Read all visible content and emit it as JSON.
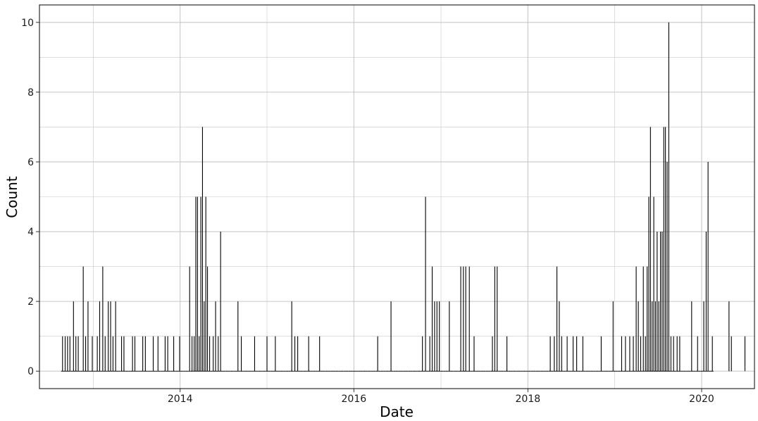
{
  "chart_data": {
    "type": "bar",
    "xlabel": "Date",
    "ylabel": "Count",
    "xlim": [
      "2012-05-20",
      "2020-08-10"
    ],
    "ylim": [
      -0.5,
      10.5
    ],
    "x_ticks": [
      "2014",
      "2016",
      "2018",
      "2020"
    ],
    "y_ticks": [
      0,
      2,
      4,
      6,
      8,
      10
    ],
    "grid": true,
    "series_color": "#000000",
    "grid_color": "#c8c8c8",
    "baseline": {
      "start": "2012-08-20",
      "end": "2020-02-20"
    },
    "points": [
      [
        "2012-08-25",
        1
      ],
      [
        "2012-09-05",
        1
      ],
      [
        "2012-09-15",
        1
      ],
      [
        "2012-09-25",
        1
      ],
      [
        "2012-10-10",
        2
      ],
      [
        "2012-10-20",
        1
      ],
      [
        "2012-10-30",
        1
      ],
      [
        "2012-11-20",
        3
      ],
      [
        "2012-11-30",
        1
      ],
      [
        "2012-12-10",
        2
      ],
      [
        "2012-12-28",
        1
      ],
      [
        "2013-01-18",
        1
      ],
      [
        "2013-01-28",
        2
      ],
      [
        "2013-02-10",
        3
      ],
      [
        "2013-02-20",
        1
      ],
      [
        "2013-03-05",
        2
      ],
      [
        "2013-03-15",
        2
      ],
      [
        "2013-03-25",
        1
      ],
      [
        "2013-04-05",
        2
      ],
      [
        "2013-04-30",
        1
      ],
      [
        "2013-05-10",
        1
      ],
      [
        "2013-06-15",
        1
      ],
      [
        "2013-06-25",
        1
      ],
      [
        "2013-07-28",
        1
      ],
      [
        "2013-08-08",
        1
      ],
      [
        "2013-09-10",
        1
      ],
      [
        "2013-09-30",
        1
      ],
      [
        "2013-10-30",
        1
      ],
      [
        "2013-11-10",
        1
      ],
      [
        "2013-12-05",
        1
      ],
      [
        "2013-12-30",
        1
      ],
      [
        "2014-02-10",
        3
      ],
      [
        "2014-02-20",
        1
      ],
      [
        "2014-03-01",
        1
      ],
      [
        "2014-03-08",
        5
      ],
      [
        "2014-03-15",
        5
      ],
      [
        "2014-03-22",
        1
      ],
      [
        "2014-03-29",
        5
      ],
      [
        "2014-04-05",
        7
      ],
      [
        "2014-04-12",
        2
      ],
      [
        "2014-04-19",
        5
      ],
      [
        "2014-04-26",
        3
      ],
      [
        "2014-05-05",
        1
      ],
      [
        "2014-05-20",
        1
      ],
      [
        "2014-05-30",
        2
      ],
      [
        "2014-06-10",
        1
      ],
      [
        "2014-06-20",
        4
      ],
      [
        "2014-09-01",
        2
      ],
      [
        "2014-09-15",
        1
      ],
      [
        "2014-11-10",
        1
      ],
      [
        "2015-01-01",
        1
      ],
      [
        "2015-02-05",
        1
      ],
      [
        "2015-04-15",
        2
      ],
      [
        "2015-04-28",
        1
      ],
      [
        "2015-05-10",
        1
      ],
      [
        "2015-06-25",
        1
      ],
      [
        "2015-08-10",
        1
      ],
      [
        "2016-04-10",
        1
      ],
      [
        "2016-06-05",
        2
      ],
      [
        "2016-10-15",
        1
      ],
      [
        "2016-10-28",
        5
      ],
      [
        "2016-11-15",
        1
      ],
      [
        "2016-11-25",
        3
      ],
      [
        "2016-12-05",
        2
      ],
      [
        "2016-12-15",
        2
      ],
      [
        "2016-12-25",
        2
      ],
      [
        "2017-02-05",
        2
      ],
      [
        "2017-03-25",
        3
      ],
      [
        "2017-04-05",
        3
      ],
      [
        "2017-04-15",
        3
      ],
      [
        "2017-04-30",
        3
      ],
      [
        "2017-05-20",
        1
      ],
      [
        "2017-08-05",
        1
      ],
      [
        "2017-08-15",
        3
      ],
      [
        "2017-08-25",
        3
      ],
      [
        "2017-10-05",
        1
      ],
      [
        "2018-04-05",
        1
      ],
      [
        "2018-04-22",
        1
      ],
      [
        "2018-05-03",
        3
      ],
      [
        "2018-05-13",
        2
      ],
      [
        "2018-05-23",
        1
      ],
      [
        "2018-06-15",
        1
      ],
      [
        "2018-07-10",
        1
      ],
      [
        "2018-07-25",
        1
      ],
      [
        "2018-08-20",
        1
      ],
      [
        "2018-11-05",
        1
      ],
      [
        "2018-12-25",
        2
      ],
      [
        "2019-01-30",
        1
      ],
      [
        "2019-02-15",
        1
      ],
      [
        "2019-03-05",
        1
      ],
      [
        "2019-03-20",
        1
      ],
      [
        "2019-04-01",
        3
      ],
      [
        "2019-04-10",
        2
      ],
      [
        "2019-04-20",
        1
      ],
      [
        "2019-05-01",
        3
      ],
      [
        "2019-05-10",
        1
      ],
      [
        "2019-05-17",
        3
      ],
      [
        "2019-05-24",
        5
      ],
      [
        "2019-05-31",
        7
      ],
      [
        "2019-06-07",
        2
      ],
      [
        "2019-06-14",
        5
      ],
      [
        "2019-06-21",
        2
      ],
      [
        "2019-06-28",
        4
      ],
      [
        "2019-07-05",
        2
      ],
      [
        "2019-07-12",
        4
      ],
      [
        "2019-07-19",
        4
      ],
      [
        "2019-07-26",
        7
      ],
      [
        "2019-08-02",
        7
      ],
      [
        "2019-08-09",
        6
      ],
      [
        "2019-08-16",
        10
      ],
      [
        "2019-08-25",
        1
      ],
      [
        "2019-09-05",
        1
      ],
      [
        "2019-09-20",
        1
      ],
      [
        "2019-10-01",
        1
      ],
      [
        "2019-11-20",
        2
      ],
      [
        "2019-12-15",
        1
      ],
      [
        "2020-01-10",
        2
      ],
      [
        "2020-01-20",
        4
      ],
      [
        "2020-01-28",
        6
      ],
      [
        "2020-02-15",
        1
      ],
      [
        "2020-04-25",
        2
      ],
      [
        "2020-05-05",
        1
      ],
      [
        "2020-07-01",
        1
      ]
    ]
  }
}
